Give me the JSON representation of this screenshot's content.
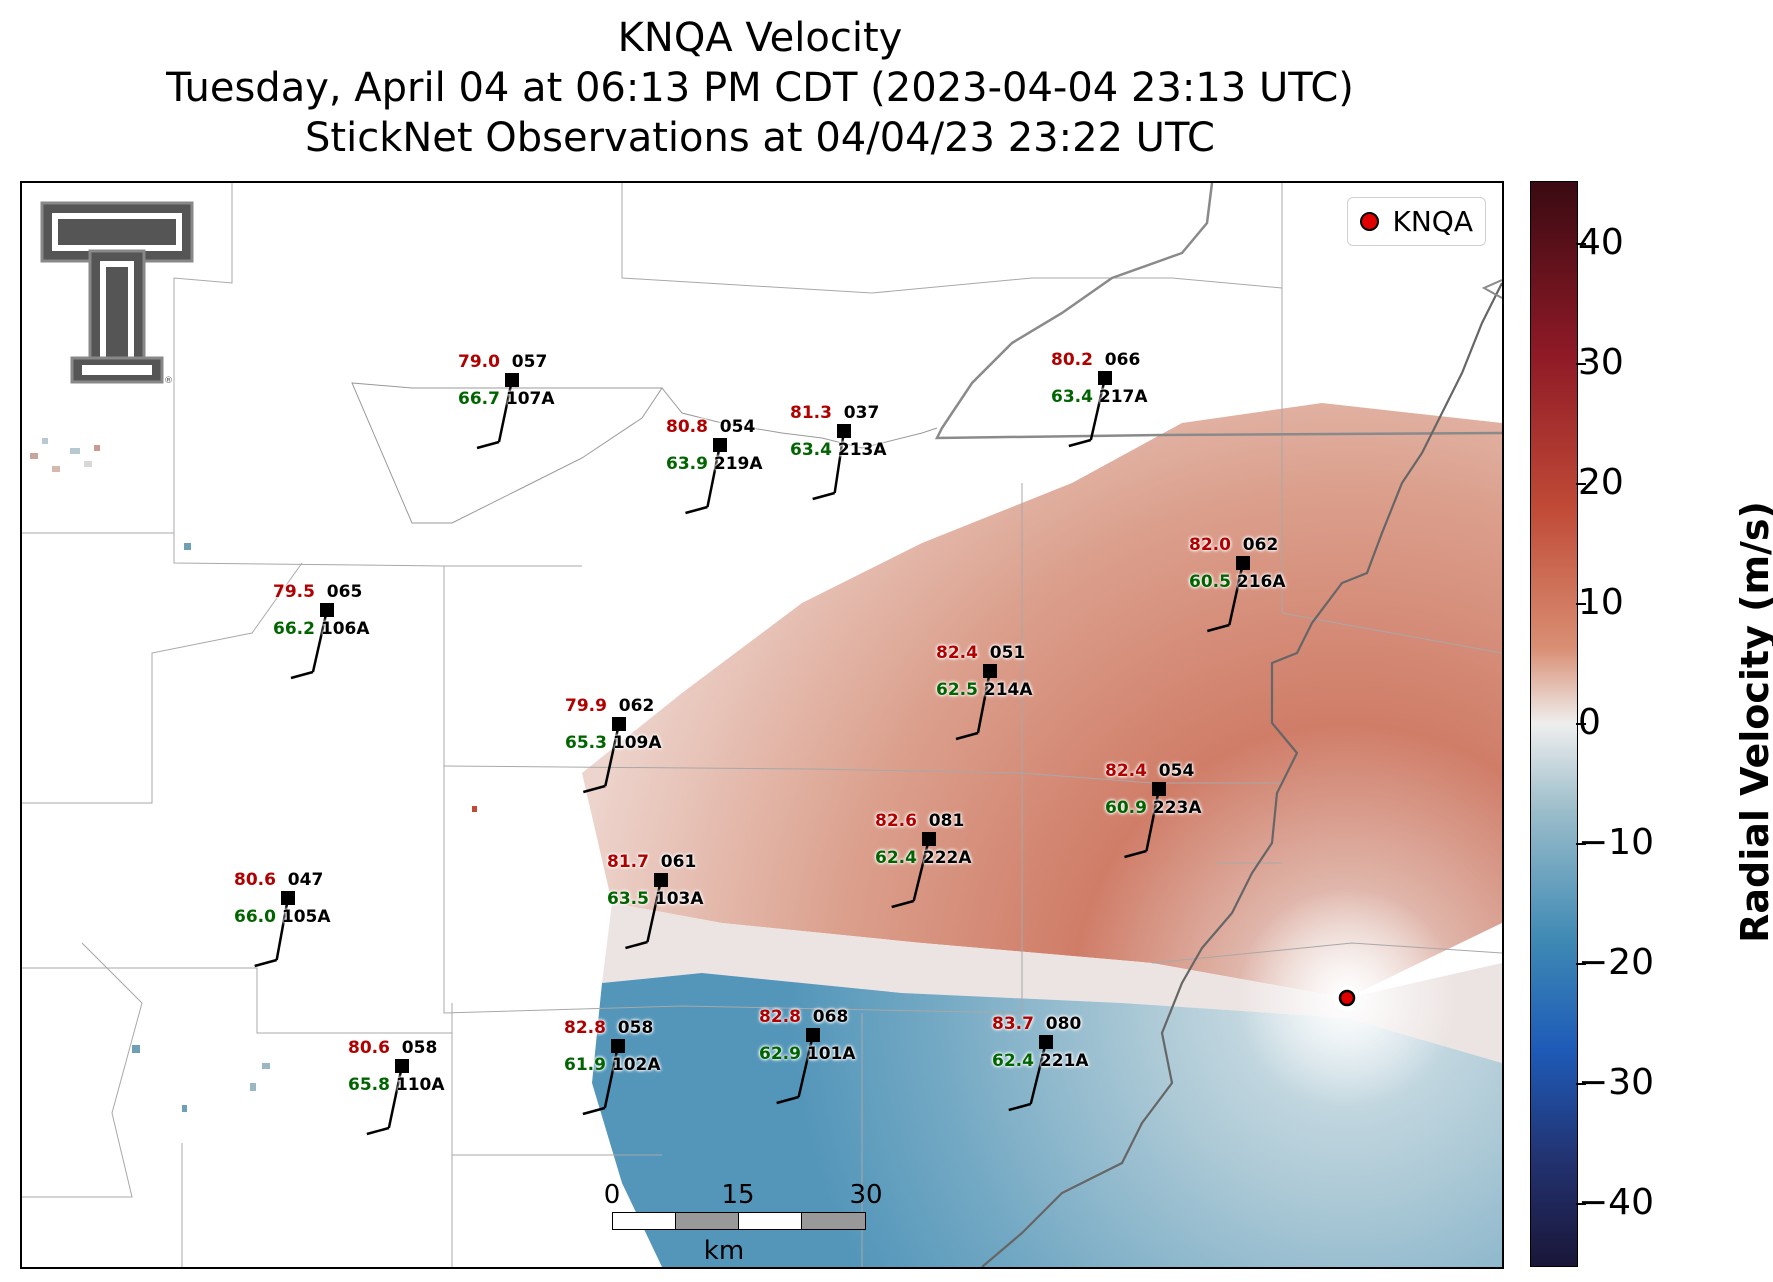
{
  "title": {
    "line1": "KNQA Velocity",
    "line2": "Tuesday, April 04 at 06:13 PM CDT (2023-04-04 23:13 UTC)",
    "line3": "StickNet Observations at 04/04/23 23:22 UTC"
  },
  "legend": {
    "label": "KNQA",
    "marker_color": "#e00000"
  },
  "logo": {
    "name": "Texas Tech double-T logo",
    "mark": "®"
  },
  "stations": [
    {
      "temp": "79.0",
      "dir": "057",
      "dew": "66.7",
      "id": "107A"
    },
    {
      "temp": "80.8",
      "dir": "054",
      "dew": "63.9",
      "id": "219A"
    },
    {
      "temp": "81.3",
      "dir": "037",
      "dew": "63.4",
      "id": "213A"
    },
    {
      "temp": "80.2",
      "dir": "066",
      "dew": "63.4",
      "id": "217A"
    },
    {
      "temp": "79.5",
      "dir": "065",
      "dew": "66.2",
      "id": "106A"
    },
    {
      "temp": "82.0",
      "dir": "062",
      "dew": "60.5",
      "id": "216A"
    },
    {
      "temp": "82.4",
      "dir": "051",
      "dew": "62.5",
      "id": "214A"
    },
    {
      "temp": "79.9",
      "dir": "062",
      "dew": "65.3",
      "id": "109A"
    },
    {
      "temp": "82.4",
      "dir": "054",
      "dew": "60.9",
      "id": "223A"
    },
    {
      "temp": "82.6",
      "dir": "081",
      "dew": "62.4",
      "id": "222A"
    },
    {
      "temp": "80.6",
      "dir": "047",
      "dew": "66.0",
      "id": "105A"
    },
    {
      "temp": "81.7",
      "dir": "061",
      "dew": "63.5",
      "id": "103A"
    },
    {
      "temp": "83.7",
      "dir": "080",
      "dew": "62.4",
      "id": "221A"
    },
    {
      "temp": "80.6",
      "dir": "058",
      "dew": "65.8",
      "id": "110A"
    },
    {
      "temp": "82.8",
      "dir": "058",
      "dew": "61.9",
      "id": "102A"
    },
    {
      "temp": "82.8",
      "dir": "068",
      "dew": "62.9",
      "id": "101A"
    }
  ],
  "scalebar": {
    "ticks": [
      "0",
      "15",
      "30"
    ],
    "unit": "km"
  },
  "colorbar": {
    "label": "Radial Velocity (m/s)",
    "ticks": [
      "40",
      "30",
      "20",
      "10",
      "0",
      "−10",
      "−20",
      "−30",
      "−40"
    ],
    "range": [
      -45,
      45
    ],
    "colors": {
      "positive": "#c04a36",
      "zero": "#eeeeee",
      "negative": "#3e89b4"
    }
  }
}
